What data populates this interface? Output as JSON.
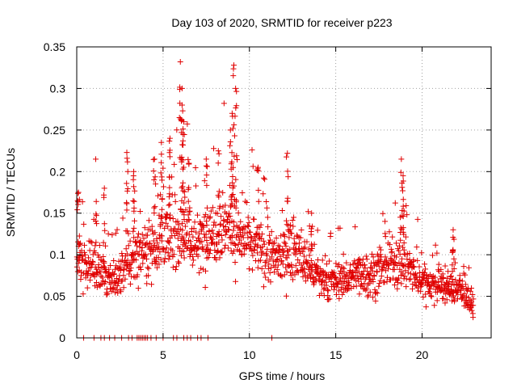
{
  "chart_data": {
    "type": "scatter",
    "title": "Day 103 of 2020, SRMTID for receiver p223",
    "xlabel": "GPS time / hours",
    "ylabel": "SRMTID / TECUs",
    "xlim": [
      0,
      24
    ],
    "ylim": [
      0,
      0.35
    ],
    "xticks": [
      0,
      5,
      10,
      15,
      20
    ],
    "xtick_labels": [
      "0",
      "5",
      "10",
      "15",
      "20"
    ],
    "yticks": [
      0,
      0.05,
      0.1,
      0.15,
      0.2,
      0.25,
      0.3,
      0.35
    ],
    "ytick_labels": [
      "0",
      "0.05",
      "0.1",
      "0.15",
      "0.2",
      "0.25",
      "0.3",
      "0.35"
    ],
    "grid": true,
    "marker": "+",
    "color": "#e00000",
    "data_window_hours": [
      0,
      23
    ],
    "zero_points_x": [
      0.4,
      1.0,
      1.4,
      1.6,
      1.9,
      2.2,
      2.6,
      3.0,
      3.2,
      3.5,
      3.6,
      3.7,
      3.8,
      3.9,
      4.0,
      4.1,
      4.3,
      4.6,
      5.0,
      5.6,
      5.8,
      6.2,
      6.4,
      6.6,
      7.0,
      7.2,
      7.6,
      11.3
    ],
    "trend": [
      [
        0.0,
        0.095
      ],
      [
        0.5,
        0.085
      ],
      [
        1.0,
        0.09
      ],
      [
        1.5,
        0.075
      ],
      [
        2.0,
        0.065
      ],
      [
        2.5,
        0.075
      ],
      [
        3.0,
        0.09
      ],
      [
        3.5,
        0.1
      ],
      [
        4.0,
        0.11
      ],
      [
        4.5,
        0.11
      ],
      [
        5.0,
        0.12
      ],
      [
        5.5,
        0.12
      ],
      [
        6.0,
        0.13
      ],
      [
        6.5,
        0.12
      ],
      [
        7.0,
        0.11
      ],
      [
        7.5,
        0.12
      ],
      [
        8.0,
        0.13
      ],
      [
        8.5,
        0.14
      ],
      [
        9.0,
        0.13
      ],
      [
        9.5,
        0.12
      ],
      [
        10.0,
        0.115
      ],
      [
        10.5,
        0.11
      ],
      [
        11.0,
        0.1
      ],
      [
        11.5,
        0.095
      ],
      [
        12.0,
        0.1
      ],
      [
        12.5,
        0.11
      ],
      [
        13.0,
        0.095
      ],
      [
        13.5,
        0.085
      ],
      [
        14.0,
        0.07
      ],
      [
        14.5,
        0.065
      ],
      [
        15.0,
        0.07
      ],
      [
        15.5,
        0.07
      ],
      [
        16.0,
        0.075
      ],
      [
        16.5,
        0.08
      ],
      [
        17.0,
        0.075
      ],
      [
        17.5,
        0.08
      ],
      [
        18.0,
        0.085
      ],
      [
        18.5,
        0.095
      ],
      [
        19.0,
        0.09
      ],
      [
        19.5,
        0.075
      ],
      [
        20.0,
        0.07
      ],
      [
        20.5,
        0.065
      ],
      [
        21.0,
        0.065
      ],
      [
        21.5,
        0.06
      ],
      [
        22.0,
        0.06
      ],
      [
        22.5,
        0.055
      ],
      [
        23.0,
        0.035
      ]
    ],
    "peaks": [
      [
        0.1,
        0.175
      ],
      [
        1.1,
        0.215
      ],
      [
        1.6,
        0.18
      ],
      [
        2.9,
        0.223
      ],
      [
        3.3,
        0.2
      ],
      [
        4.5,
        0.215
      ],
      [
        4.9,
        0.235
      ],
      [
        5.4,
        0.24
      ],
      [
        6.0,
        0.332
      ],
      [
        6.1,
        0.3
      ],
      [
        6.1,
        0.28
      ],
      [
        6.2,
        0.26
      ],
      [
        6.5,
        0.21
      ],
      [
        7.5,
        0.215
      ],
      [
        8.2,
        0.225
      ],
      [
        8.9,
        0.25
      ],
      [
        9.1,
        0.328
      ],
      [
        9.2,
        0.3
      ],
      [
        9.0,
        0.27
      ],
      [
        10.5,
        0.205
      ],
      [
        12.2,
        0.222
      ],
      [
        13.6,
        0.15
      ],
      [
        18.8,
        0.215
      ],
      [
        18.9,
        0.195
      ],
      [
        21.8,
        0.13
      ]
    ]
  }
}
